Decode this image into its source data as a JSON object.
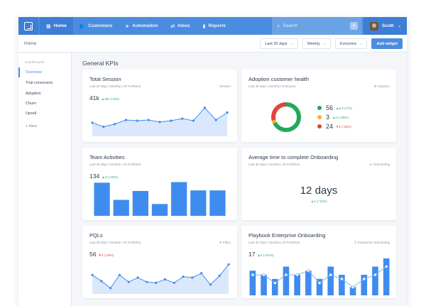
{
  "nav": {
    "items": [
      {
        "icon": "grid-icon",
        "glyph": "▦",
        "label": "Home"
      },
      {
        "icon": "users-icon",
        "glyph": "👥",
        "label": "Customers"
      },
      {
        "icon": "send-icon",
        "glyph": "➤",
        "label": "Automation"
      },
      {
        "icon": "inbox-icon",
        "glyph": "⇄",
        "label": "Inbox"
      },
      {
        "icon": "bar-chart-icon",
        "glyph": "▮",
        "label": "Reports"
      }
    ],
    "search_placeholder": "Search",
    "user_name": "Scott"
  },
  "subheader": {
    "breadcrumb": "Home",
    "filters": [
      "Last 30 days",
      "Weekly",
      "Everyone"
    ],
    "add_widget": "Add widget"
  },
  "sidebar": {
    "section_label": "Dashboards",
    "items": [
      "Overview",
      "Trial conversion",
      "Adoption",
      "Churn",
      "Upsell"
    ],
    "new_label": "+ New"
  },
  "main": {
    "title": "General KPIs",
    "cards": {
      "total_session": {
        "title": "Total Session",
        "sub": "Last 30 days  |  Weekly  |  All Portfolios",
        "tag": "Session",
        "value": "41k",
        "delta": "▲187 (+9%)"
      },
      "adoption": {
        "title": "Adoption customer health",
        "sub": "Last 30 days  |  Weekly  |  Everyone",
        "tag": "Adoption",
        "rows": [
          {
            "value": "56",
            "delta": "▲6 (+17%)",
            "color": "#22a85a",
            "dir": "up"
          },
          {
            "value": "3",
            "delta": "▲1 (+25%)",
            "color": "#f2b530",
            "dir": "up"
          },
          {
            "value": "24",
            "delta": "▼1 (-25%)",
            "color": "#e0453a",
            "dir": "down"
          }
        ]
      },
      "team": {
        "title": "Team Activities",
        "sub": "Last 30 days  |  Weekly  |  All Portfolios",
        "tag": "",
        "value": "134",
        "delta": "▲2 (+15%)"
      },
      "onboarding_time": {
        "title": "Average time to complete Onboarding",
        "sub": "Last 30 days  |  Weekly  |  All Portfolios",
        "tag": "Onboarding",
        "value": "12 days",
        "delta": "▲1 (+12%)"
      },
      "pqls": {
        "title": "PQLs",
        "sub": "Last 30 days  |  Weekly  |  All Portfolios",
        "tag": "PQLs",
        "value": "56",
        "delta": "▼3 (-19%)"
      },
      "playbook": {
        "title": "Playbook Enterprise Onboarding",
        "sub": "Last 30 days  |  Weekly  |  All Portfolios",
        "tag": "Enterprise Onboarding",
        "value": "17",
        "delta": "▲2 (+31%)"
      }
    }
  },
  "colors": {
    "accent": "#4a8de0",
    "bar": "#3f8cef",
    "area": "#dbe8fb",
    "up": "#22a85a",
    "down": "#e0453a"
  },
  "chart_data": [
    {
      "type": "area",
      "name": "Total Session",
      "values": [
        18,
        12,
        16,
        22,
        21,
        22,
        19,
        21,
        24,
        21,
        40,
        22,
        33
      ]
    },
    {
      "type": "pie",
      "name": "Adoption customer health",
      "slices": [
        {
          "label": "56",
          "value": 56
        },
        {
          "label": "3",
          "value": 3
        },
        {
          "label": "24",
          "value": 24
        }
      ]
    },
    {
      "type": "bar",
      "name": "Team Activities",
      "values": [
        56,
        27,
        42,
        20,
        57,
        43,
        43
      ]
    },
    {
      "type": "area",
      "name": "PQLs",
      "values": [
        20,
        13,
        5,
        20,
        12,
        17,
        12,
        11,
        15,
        11,
        18,
        17,
        22,
        9,
        19,
        32
      ]
    },
    {
      "type": "bar",
      "name": "Playbook Enterprise Onboarding",
      "bars": [
        36,
        30,
        24,
        42,
        30,
        36,
        24,
        42,
        30,
        12,
        30,
        42,
        54
      ],
      "line": [
        30,
        30,
        18,
        30,
        30,
        36,
        18,
        30,
        24,
        12,
        24,
        30,
        42
      ]
    }
  ]
}
